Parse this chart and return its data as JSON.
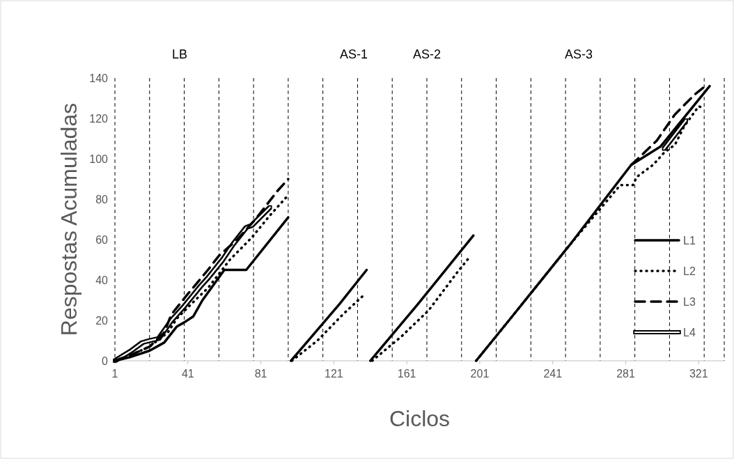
{
  "chart_data": {
    "type": "line",
    "xlabel": "Ciclos",
    "ylabel": "Respostas Acumuladas",
    "xlim": [
      1,
      335
    ],
    "xticks": [
      1,
      41,
      81,
      121,
      161,
      201,
      241,
      281,
      321
    ],
    "ylim": [
      0,
      140
    ],
    "yticks": [
      0,
      20,
      40,
      60,
      80,
      100,
      120,
      140
    ],
    "grid": false,
    "legend": "bottom right",
    "annotations": [
      "LB",
      "AS-1",
      "AS-2",
      "AS-3"
    ],
    "ref_lines": [
      {
        "axis": "x",
        "value": 1,
        "line_style": "dashed",
        "color": "#000000"
      },
      {
        "axis": "x",
        "value": 20,
        "line_style": "dashed",
        "color": "#000000"
      },
      {
        "axis": "x",
        "value": 39,
        "line_style": "dashed",
        "color": "#000000"
      },
      {
        "axis": "x",
        "value": 58,
        "line_style": "dashed",
        "color": "#000000"
      },
      {
        "axis": "x",
        "value": 77,
        "line_style": "dashed",
        "color": "#000000"
      },
      {
        "axis": "x",
        "value": 96,
        "line_style": "dashed",
        "color": "#000000"
      },
      {
        "axis": "x",
        "value": 115,
        "line_style": "dashed",
        "color": "#000000"
      },
      {
        "axis": "x",
        "value": 134,
        "line_style": "dashed",
        "color": "#000000"
      },
      {
        "axis": "x",
        "value": 153,
        "line_style": "dashed",
        "color": "#000000"
      },
      {
        "axis": "x",
        "value": 172,
        "line_style": "dashed",
        "color": "#000000"
      },
      {
        "axis": "x",
        "value": 191,
        "line_style": "dashed",
        "color": "#000000"
      },
      {
        "axis": "x",
        "value": 210,
        "line_style": "dashed",
        "color": "#000000"
      },
      {
        "axis": "x",
        "value": 229,
        "line_style": "dashed",
        "color": "#000000"
      },
      {
        "axis": "x",
        "value": 248,
        "line_style": "dashed",
        "color": "#000000"
      },
      {
        "axis": "x",
        "value": 267,
        "line_style": "dashed",
        "color": "#000000"
      },
      {
        "axis": "x",
        "value": 286,
        "line_style": "dashed",
        "color": "#000000"
      },
      {
        "axis": "x",
        "value": 305,
        "line_style": "dashed",
        "color": "#000000"
      },
      {
        "axis": "x",
        "value": 324,
        "line_style": "dashed",
        "color": "#000000"
      },
      {
        "axis": "x",
        "value": 335,
        "line_style": "dashed",
        "color": "#000000"
      }
    ],
    "series": [
      {
        "name": "L1",
        "color": "#000000",
        "line_style": "solid",
        "x": [
          1,
          10,
          20,
          28,
          35,
          39,
          44,
          49,
          61,
          73,
          96,
          97,
          97.5,
          124,
          139,
          140,
          141,
          167,
          197.5,
          198,
          199,
          217,
          250,
          284,
          300,
          327
        ],
        "values": [
          0,
          2,
          5,
          9,
          17,
          19,
          22,
          30,
          45,
          45,
          71,
          null,
          0,
          28,
          45,
          null,
          0,
          28,
          62,
          null,
          0,
          20,
          57,
          97,
          106,
          136
        ]
      },
      {
        "name": "L2",
        "color": "#000000",
        "line_style": "dotted",
        "x": [
          1,
          10,
          20,
          30,
          35,
          45,
          52,
          64,
          76,
          86,
          95,
          97,
          98,
          112,
          126,
          138,
          140,
          142,
          158,
          173,
          188,
          196,
          198,
          199,
          217,
          250,
          278,
          285,
          287,
          296,
          302,
          308,
          313,
          321,
          324
        ],
        "values": [
          0,
          3,
          7,
          14,
          21,
          30,
          36,
          50,
          61,
          72,
          81,
          null,
          0,
          10,
          23,
          33,
          null,
          0,
          12,
          25,
          43,
          52,
          null,
          0,
          20,
          57,
          87,
          87,
          91,
          97,
          103,
          107,
          116,
          126,
          125
        ]
      },
      {
        "name": "L3",
        "color": "#000000",
        "line_style": "dashed",
        "x": [
          1,
          10,
          20,
          28,
          32,
          40,
          52,
          58,
          68,
          78,
          90,
          96,
          97,
          284,
          290,
          298,
          308,
          319,
          326
        ],
        "values": [
          0,
          3,
          7,
          14,
          23,
          32,
          45,
          52,
          60,
          70,
          84,
          90,
          null,
          97,
          102,
          109,
          122,
          132,
          137
        ]
      },
      {
        "name": "L4",
        "color": "#ffffff",
        "line_style": "solid",
        "x": [
          1,
          10,
          16,
          20,
          25,
          32,
          39,
          48,
          52,
          60,
          66,
          73,
          76,
          86,
          97,
          302,
          314
        ],
        "values": [
          0,
          5,
          9,
          10,
          11,
          20,
          27,
          37,
          41,
          50,
          58,
          66,
          67,
          76,
          null,
          105,
          119
        ]
      }
    ]
  }
}
